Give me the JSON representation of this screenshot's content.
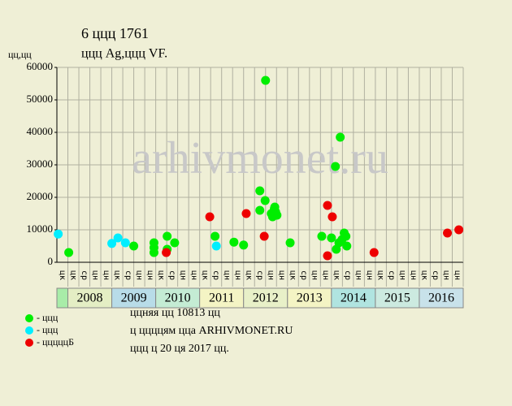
{
  "chart_data": {
    "type": "scatter",
    "title": "6 ццц 1761",
    "subtitle": "ццц Ag,ццц VF.",
    "y_label": "цц,цц",
    "watermark": "arhivmonet.ru",
    "xlim": [
      2007.75,
      2017
    ],
    "ylim": [
      0,
      60000
    ],
    "yticks": [
      0,
      10000,
      20000,
      30000,
      40000,
      50000,
      60000
    ],
    "grid": true,
    "year_bands": {
      "categories": [
        null,
        "2008",
        "2009",
        "2010",
        "2011",
        "2012",
        "2013",
        "2014",
        "2015",
        "2016"
      ],
      "starts": [
        2007.75,
        2008,
        2009,
        2010,
        2011,
        2012,
        2013,
        2014,
        2015,
        2016
      ],
      "colors": [
        "#a8eca8",
        "#e4eec4",
        "#b8dce8",
        "#c4ecd4",
        "#f4f4c4",
        "#e8f0c8",
        "#f4f4c4",
        "#b0e4e0",
        "#cceae0",
        "#c8e2ea"
      ]
    },
    "quarter_labels": [
      "цк",
      "цк",
      "ср",
      "цн",
      "цн",
      "цк",
      "ср",
      "цн",
      "цн",
      "цк",
      "ср",
      "цн",
      "цн",
      "цк",
      "ср",
      "цн",
      "цн",
      "цк",
      "ср",
      "цн",
      "цн",
      "цк",
      "ср",
      "цн",
      "цн",
      "цк",
      "ср",
      "цн",
      "цн",
      "цк",
      "ср",
      "цн",
      "цн",
      "цк",
      "ср",
      "цн",
      "цн"
    ],
    "series": [
      {
        "name": "- ццц",
        "color": "#00ee00",
        "x": [
          2008.02,
          2009.5,
          2009.96,
          2009.96,
          2009.96,
          2010.26,
          2010.26,
          2010.43,
          2011.35,
          2011.78,
          2012.0,
          2012.37,
          2012.37,
          2012.49,
          2012.5,
          2012.63,
          2012.66,
          2012.7,
          2012.73,
          2012.76,
          2012.71,
          2013.06,
          2013.78,
          2014.0,
          2014.09,
          2014.2,
          2014.11,
          2014.17,
          2014.24,
          2014.29,
          2014.33,
          2014.35
        ],
        "values": [
          3000,
          5000,
          6000,
          4500,
          3000,
          8000,
          4000,
          6000,
          8000,
          6200,
          5300,
          22000,
          16000,
          19000,
          56000,
          15000,
          14000,
          16500,
          15500,
          14500,
          17000,
          6000,
          8000,
          7500,
          29500,
          38500,
          4000,
          6000,
          7000,
          9000,
          8000,
          5000
        ]
      },
      {
        "name": "- ццц",
        "color": "#00eeff",
        "x": [
          2007.78,
          2009.0,
          2009.14,
          2009.31,
          2011.38
        ],
        "values": [
          8700,
          5800,
          7500,
          6000,
          5000
        ]
      },
      {
        "name": "- цццццБ",
        "color": "#ee0000",
        "x": [
          2010.24,
          2011.23,
          2012.06,
          2012.47,
          2013.91,
          2013.91,
          2014.02,
          2014.97,
          2016.64,
          2016.9
        ],
        "values": [
          3000,
          14000,
          15000,
          8000,
          17500,
          2000,
          14000,
          3000,
          9000,
          10000
        ]
      }
    ],
    "footer": [
      "ццняя цц 10813 цц",
      "ц ццццям цца ARHIVMONET.RU",
      "ццц ц 20 ця 2017 цц."
    ]
  }
}
